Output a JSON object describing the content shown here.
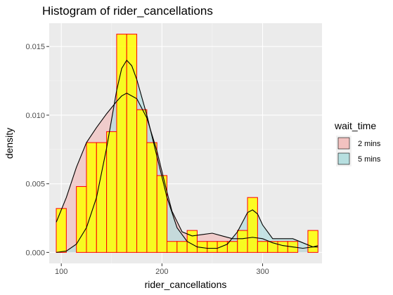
{
  "chart_data": {
    "type": "histogram",
    "title": "Histogram of rider_cancellations",
    "xlabel": "rider_cancellations",
    "ylabel": "density",
    "xlim": [
      88,
      359
    ],
    "ylim": [
      -0.0008,
      0.0167
    ],
    "x_ticks": [
      100,
      200,
      300
    ],
    "x_tick_labels": [
      "100",
      "200",
      "300"
    ],
    "y_ticks": [
      0,
      0.005,
      0.01,
      0.015
    ],
    "y_tick_labels": [
      "0.000",
      "0.005",
      "0.010",
      "0.015"
    ],
    "grid": true,
    "legend": {
      "title": "wait_time",
      "position": "right",
      "entries": [
        {
          "label": "2 mins",
          "fill": "#f2c2c0"
        },
        {
          "label": "5 mins",
          "fill": "#b7dfe0"
        }
      ]
    },
    "bars": {
      "fill": "#ffff00",
      "border": "#ff0000",
      "bin_edges": [
        95,
        105,
        115,
        125,
        135,
        145,
        155,
        165,
        175,
        185,
        195,
        205,
        215,
        225,
        235,
        245,
        255,
        265,
        275,
        285,
        295,
        305,
        315,
        325,
        335,
        345,
        355
      ],
      "densities": [
        0.0032,
        0,
        0.0048,
        0.008,
        0.008,
        0.0088,
        0.0159,
        0.0159,
        0.0104,
        0.008,
        0.0056,
        0.0008,
        0.0008,
        0.0016,
        0.0008,
        0.0008,
        0.0008,
        0.0008,
        0.0016,
        0.004,
        0.0008,
        0.0008,
        0.0008,
        0.0008,
        0,
        0.0016
      ]
    },
    "density_curves": [
      {
        "group": "2 mins",
        "fill": "#f2c2c0",
        "x": [
          95,
          105,
          115,
          125,
          135,
          145,
          155,
          160,
          165,
          175,
          185,
          195,
          205,
          210,
          220,
          230,
          240,
          250,
          260,
          270,
          280,
          290,
          300,
          310,
          320,
          330,
          340,
          350,
          355
        ],
        "y": [
          0.0022,
          0.004,
          0.0062,
          0.008,
          0.0091,
          0.0101,
          0.011,
          0.0114,
          0.0116,
          0.0112,
          0.0098,
          0.0074,
          0.0044,
          0.003,
          0.0015,
          0.0012,
          0.0013,
          0.0014,
          0.0012,
          0.001,
          0.001,
          0.0011,
          0.001,
          0.0007,
          0.0005,
          0.0004,
          0.0003,
          0.0004,
          0.0004
        ]
      },
      {
        "group": "5 mins",
        "fill": "#b7dfe0",
        "x": [
          95,
          105,
          115,
          125,
          135,
          145,
          155,
          160,
          165,
          170,
          175,
          185,
          195,
          205,
          215,
          225,
          235,
          245,
          255,
          265,
          275,
          280,
          285,
          290,
          295,
          300,
          310,
          320,
          330,
          340,
          350,
          355
        ],
        "y": [
          0,
          0.0001,
          0.0006,
          0.0018,
          0.004,
          0.0076,
          0.0118,
          0.0134,
          0.014,
          0.0136,
          0.0126,
          0.01,
          0.007,
          0.004,
          0.0018,
          0.0008,
          0.0004,
          0.0003,
          0.0003,
          0.0006,
          0.0015,
          0.0022,
          0.0029,
          0.0031,
          0.0028,
          0.002,
          0.001,
          0.001,
          0.001,
          0.0007,
          0.0004,
          0.0005
        ]
      }
    ]
  }
}
